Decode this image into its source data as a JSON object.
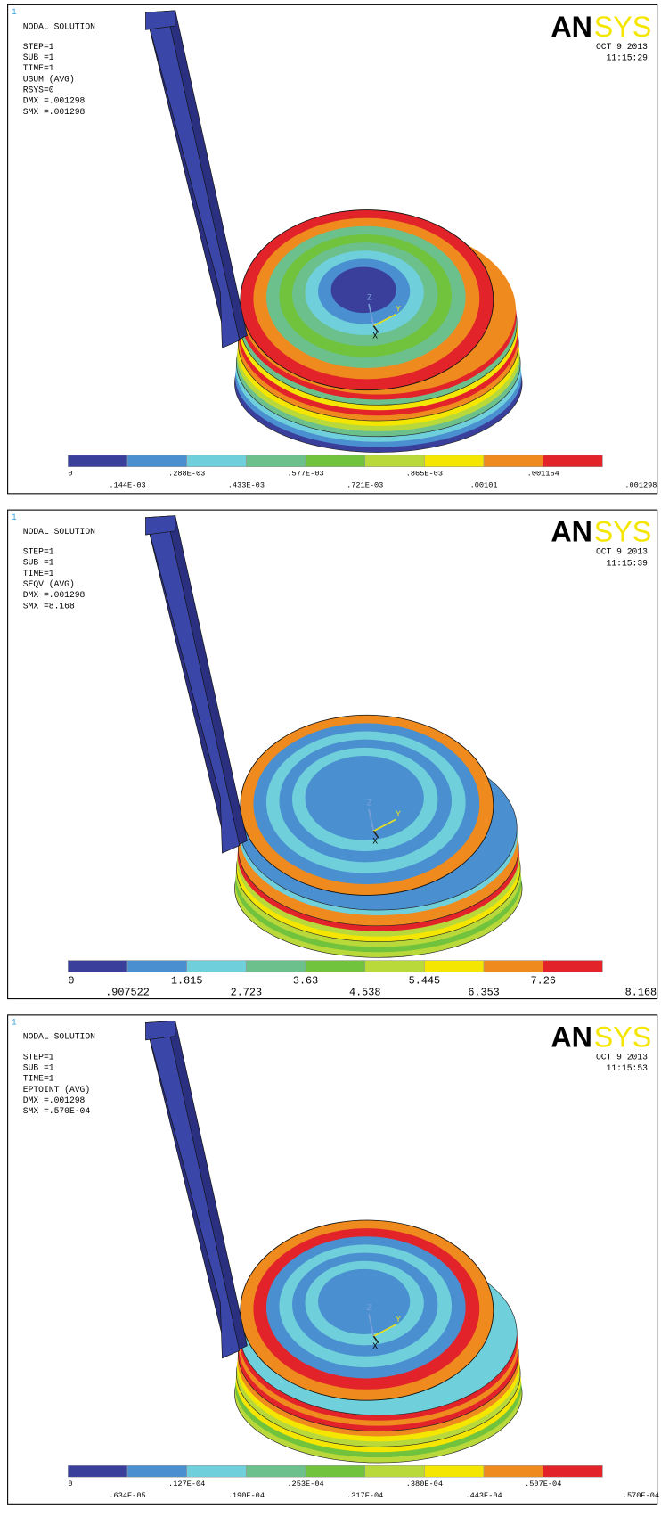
{
  "panels": [
    {
      "index": "1",
      "heading": "NODAL SOLUTION",
      "info": [
        "STEP=1",
        "SUB =1",
        "TIME=1",
        "USUM     (AVG)",
        "RSYS=0",
        "DMX =.001298",
        "SMX =.001298"
      ],
      "logo_left": "AN",
      "logo_right": "SYS",
      "date": "OCT  9 2013",
      "time": "11:15:29",
      "legend_top": [
        "0",
        ".288E-03",
        ".577E-03",
        ".865E-03",
        ".001154"
      ],
      "legend_bottom": [
        ".144E-03",
        ".433E-03",
        ".721E-03",
        ".00101",
        ".001298"
      ],
      "triad": [
        "Z",
        "Y",
        "X"
      ]
    },
    {
      "index": "1",
      "heading": "NODAL SOLUTION",
      "info": [
        "STEP=1",
        "SUB =1",
        "TIME=1",
        "SEQV     (AVG)",
        "DMX =.001298",
        "SMX =8.168"
      ],
      "logo_left": "AN",
      "logo_right": "SYS",
      "date": "OCT  9 2013",
      "time": "11:15:39",
      "legend_top": [
        "0",
        "1.815",
        "3.63",
        "5.445",
        "7.26"
      ],
      "legend_bottom": [
        ".907522",
        "2.723",
        "4.538",
        "6.353",
        "8.168"
      ],
      "triad": [
        "Z",
        "Y",
        "X"
      ]
    },
    {
      "index": "1",
      "heading": "NODAL SOLUTION",
      "info": [
        "STEP=1",
        "SUB =1",
        "TIME=1",
        "EPTOINT  (AVG)",
        "DMX =.001298",
        "SMX =.570E-04"
      ],
      "logo_left": "AN",
      "logo_right": "SYS",
      "date": "OCT  9 2013",
      "time": "11:15:53",
      "legend_top": [
        "0",
        ".127E-04",
        ".253E-04",
        ".380E-04",
        ".507E-04"
      ],
      "legend_bottom": [
        ".634E-05",
        ".190E-04",
        ".317E-04",
        ".443E-04",
        ".570E-04"
      ],
      "triad": [
        "Z",
        "Y",
        "X"
      ]
    }
  ]
}
